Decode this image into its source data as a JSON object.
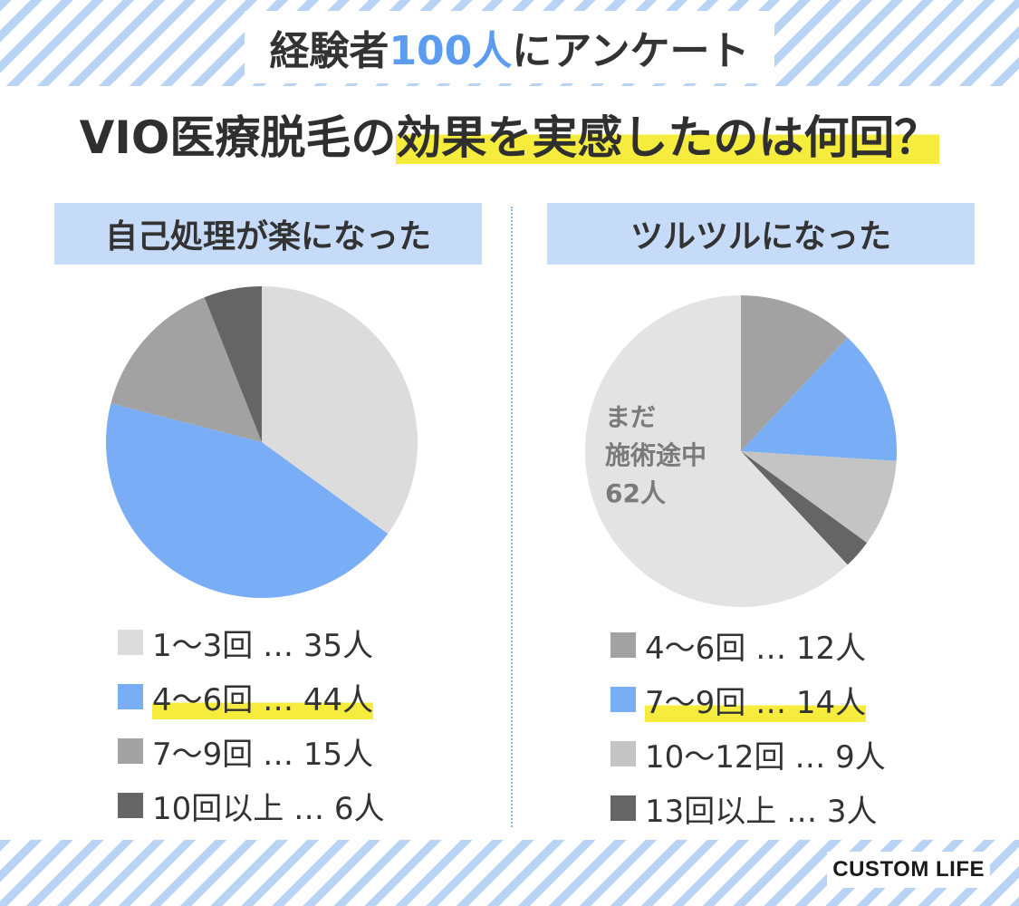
{
  "header": {
    "prefix": "経験者",
    "accent": "100人",
    "suffix": "にアンケート"
  },
  "title": {
    "prefix": "VIO医療脱毛の",
    "highlight": "効果を実感したのは何回？"
  },
  "colors": {
    "stripe": "#b9d3f5",
    "accent_blue": "#5b9bf0",
    "panel_bg": "#c5dbf8",
    "highlight_yellow": "#f6ec3d"
  },
  "chart_data": [
    {
      "type": "pie",
      "title": "自己処理が楽になった",
      "start": "12 o'clock, clockwise",
      "slices": [
        {
          "label": "1〜3回",
          "value": 35,
          "legend": "1〜3回 … 35人",
          "color": "#dcdcdc",
          "highlight": false
        },
        {
          "label": "4〜6回",
          "value": 44,
          "legend": "4〜6回 … 44人",
          "color": "#79aef7",
          "highlight": true
        },
        {
          "label": "7〜9回",
          "value": 15,
          "legend": "7〜9回 … 15人",
          "color": "#a2a2a2",
          "highlight": false
        },
        {
          "label": "10回以上",
          "value": 6,
          "legend": "10回以上 … 6人",
          "color": "#656565",
          "highlight": false
        }
      ]
    },
    {
      "type": "pie",
      "title": "ツルツルになった",
      "start": "12 o'clock, clockwise",
      "slices": [
        {
          "label": "4〜6回",
          "value": 12,
          "legend": "4〜6回 … 12人",
          "color": "#a2a2a2",
          "highlight": false
        },
        {
          "label": "7〜9回",
          "value": 14,
          "legend": "7〜9回 … 14人",
          "color": "#79aef7",
          "highlight": true
        },
        {
          "label": "10〜12回",
          "value": 9,
          "legend": "10〜12回 … 9人",
          "color": "#c4c4c4",
          "highlight": false
        },
        {
          "label": "13回以上",
          "value": 3,
          "legend": "13回以上 … 3人",
          "color": "#656565",
          "highlight": false
        },
        {
          "label": "まだ施術途中",
          "value": 62,
          "legend": null,
          "color": "#e3e3e3",
          "highlight": false
        }
      ],
      "annotation": {
        "line1": "まだ",
        "line2": "施術途中",
        "line3": "62人"
      }
    }
  ],
  "logo": "CUSTOM LIFE"
}
